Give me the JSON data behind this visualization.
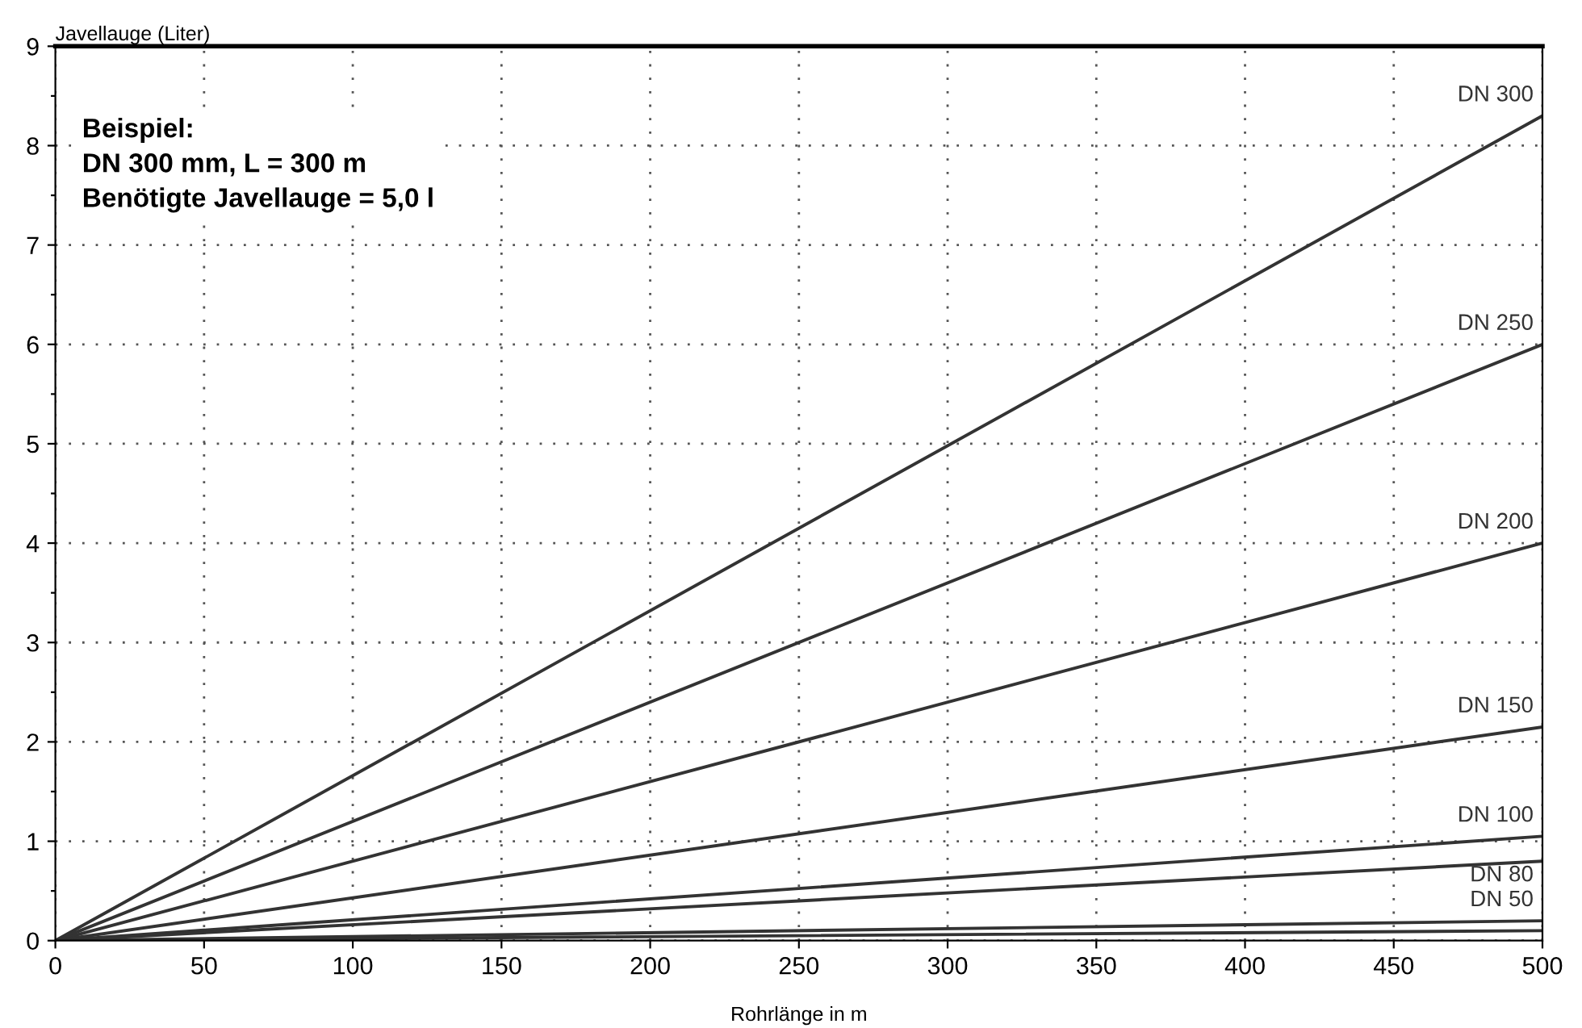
{
  "chart_data": {
    "type": "line",
    "ylabel": "Javellauge (Liter)",
    "xlabel": "Rohrlänge in m",
    "x": [
      0,
      500
    ],
    "series": [
      {
        "name": "DN 300",
        "color": "#333333",
        "values": [
          0,
          8.3
        ]
      },
      {
        "name": "DN 250",
        "color": "#333333",
        "values": [
          0,
          6.0
        ]
      },
      {
        "name": "DN 200",
        "color": "#333333",
        "values": [
          0,
          4.0
        ]
      },
      {
        "name": "DN 150",
        "color": "#333333",
        "values": [
          0,
          2.15
        ]
      },
      {
        "name": "DN 100",
        "color": "#333333",
        "values": [
          0,
          1.05
        ]
      },
      {
        "name": "DN 80",
        "color": "#333333",
        "values": [
          0,
          0.8
        ]
      },
      {
        "name": "DN 50",
        "color": "#333333",
        "values": [
          0,
          0.2
        ]
      },
      {
        "color": "#333333",
        "values": [
          0,
          0.1
        ]
      }
    ],
    "xlim": [
      0,
      500
    ],
    "xticks": [
      0,
      50,
      100,
      150,
      200,
      250,
      300,
      350,
      400,
      450,
      500
    ],
    "ylim": [
      0,
      9
    ],
    "yticks": [
      0,
      {
        "value": 0.5,
        "label": null
      },
      1,
      {
        "value": 1.5,
        "label": null
      },
      2,
      {
        "value": 2.5,
        "label": null
      },
      3,
      {
        "value": 3.5,
        "label": null
      },
      4,
      {
        "value": 4.5,
        "label": null
      },
      5,
      {
        "value": 5.5,
        "label": null
      },
      6,
      {
        "value": 6.5,
        "label": null
      },
      7,
      {
        "value": 7.5,
        "label": null
      },
      8,
      {
        "value": 8.5,
        "label": null
      },
      9
    ],
    "grid": true,
    "line_style": "solid",
    "marker": "none",
    "annotations": [
      "Beispiel:\nDN 300 mm, L = 300 m\nBenötigte Javellauge = 5,0 l"
    ]
  }
}
